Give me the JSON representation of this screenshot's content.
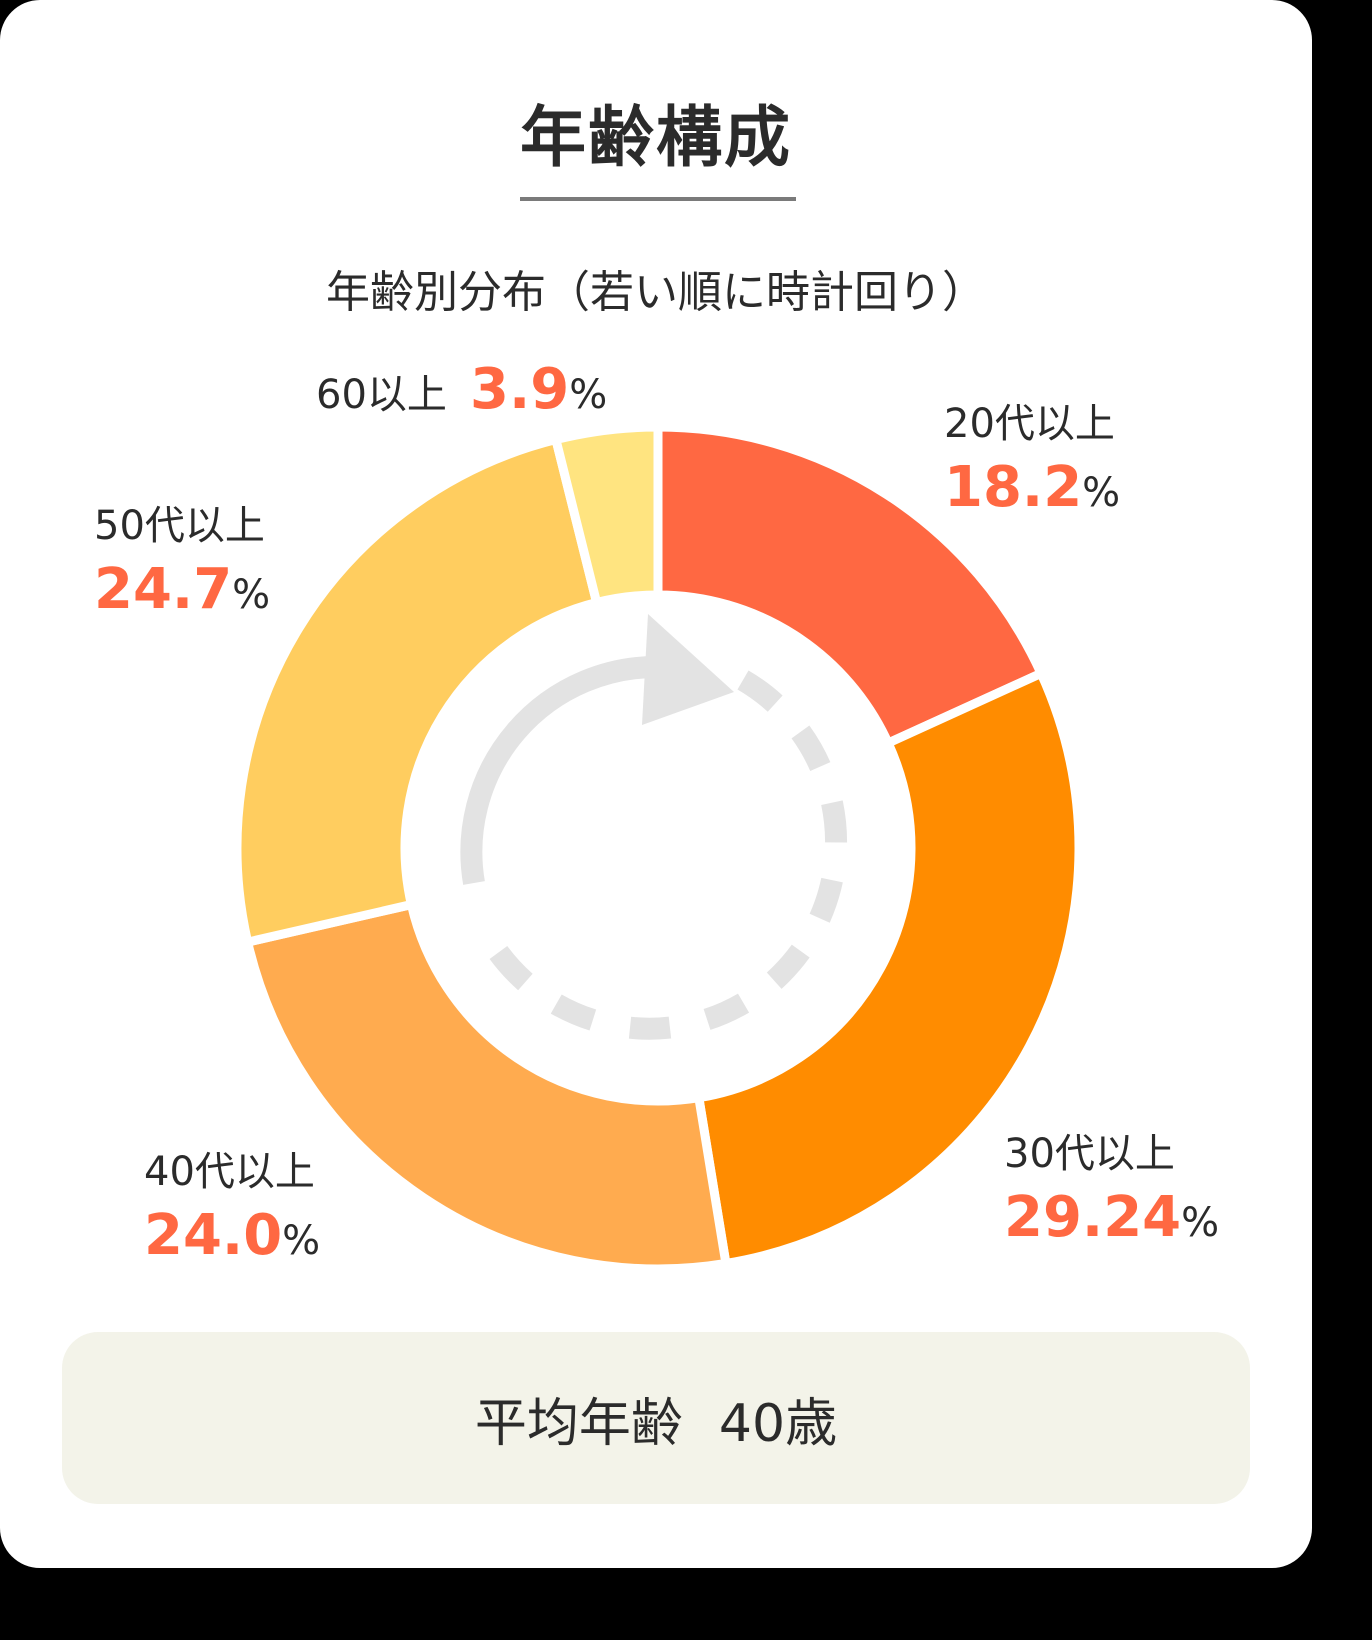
{
  "title": "年齢構成",
  "subtitle": "年齢別分布（若い順に時計回り）",
  "labels": [
    {
      "name": "20代以上",
      "value": "18.2",
      "unit": "%"
    },
    {
      "name": "30代以上",
      "value": "29.24",
      "unit": "%"
    },
    {
      "name": "40代以上",
      "value": "24.0",
      "unit": "%"
    },
    {
      "name": "50代以上",
      "value": "24.7",
      "unit": "%"
    },
    {
      "name": "60以上",
      "value": "3.9",
      "unit": "%"
    }
  ],
  "average": {
    "label": "平均年齢",
    "value": "40歳"
  },
  "colors": {
    "accent_text": "#ff6842",
    "arrow": "#e3e3e3",
    "avg_box": "#f3f3e9"
  },
  "chart_data": {
    "type": "pie",
    "subtype": "donut",
    "title": "年齢構成",
    "subtitle": "年齢別分布（若い順に時計回り）",
    "categories": [
      "20代以上",
      "30代以上",
      "40代以上",
      "50代以上",
      "60以上"
    ],
    "values": [
      18.2,
      29.24,
      24.0,
      24.7,
      3.9
    ],
    "unit": "%",
    "colors": [
      "#ff6842",
      "#ff8c00",
      "#ffab4f",
      "#ffcd5f",
      "#ffe480"
    ],
    "start_angle": "12 o'clock",
    "direction": "clockwise",
    "annotations": [
      "clockwise arrow in center (dashed circle with arrowhead)"
    ],
    "summary": "平均年齢 40歳"
  }
}
